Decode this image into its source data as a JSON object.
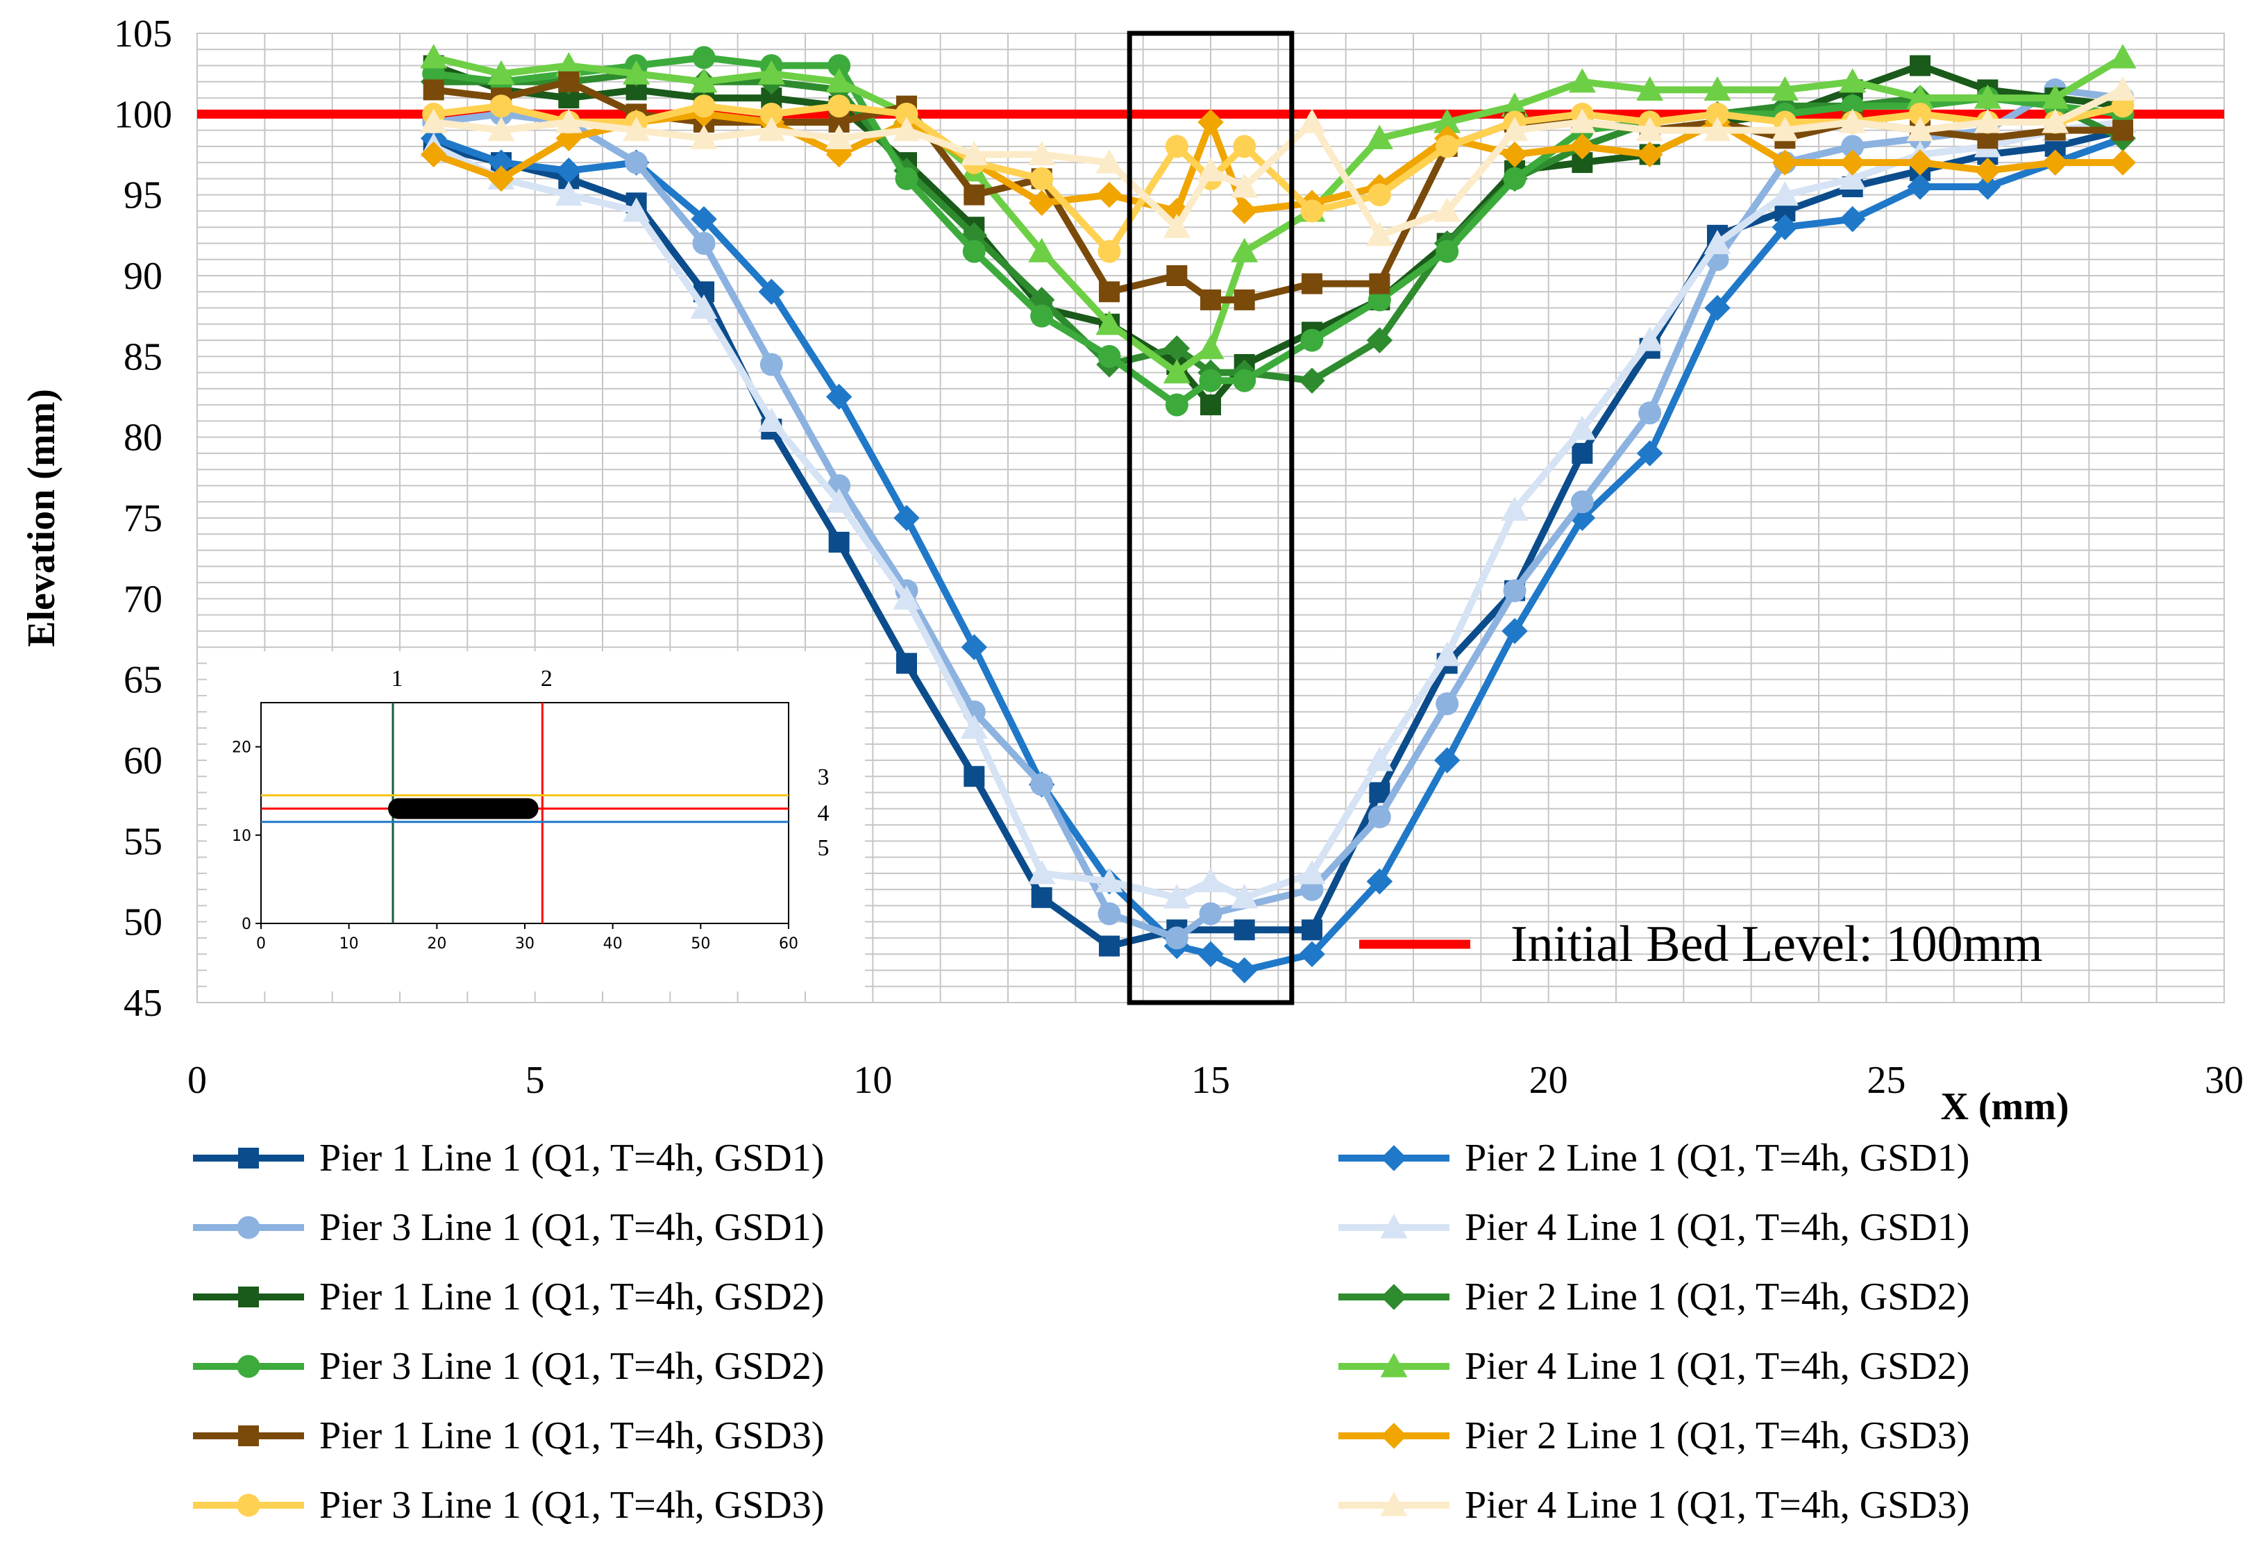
{
  "chart_data": {
    "type": "line",
    "title": "",
    "xlabel": "X (mm)",
    "ylabel": "Elevation (mm)",
    "xlim": [
      0,
      30
    ],
    "ylim": [
      45,
      105
    ],
    "xticks": [
      0,
      5,
      10,
      15,
      20,
      25,
      30
    ],
    "yticks": [
      45,
      50,
      55,
      60,
      65,
      70,
      75,
      80,
      85,
      90,
      95,
      100,
      105
    ],
    "grid": true,
    "legend_position": "bottom",
    "reference_line": {
      "label": "Initial Bed Level: 100mm",
      "y": 100,
      "color": "#ff0000"
    },
    "highlight_box": {
      "x": [
        13.8,
        16.2
      ],
      "y": [
        45,
        105
      ],
      "color": "#000000"
    },
    "series": [
      {
        "name": "Pier 1  Line 1 (Q1, T=4h, GSD1)",
        "color": "#0b4c8c",
        "marker": "square",
        "x": [
          3.5,
          4.5,
          5.5,
          6.5,
          7.5,
          8.5,
          9.5,
          10.5,
          11.5,
          12.5,
          13.5,
          14.5,
          15.5,
          16.5,
          17.5,
          18.5,
          19.5,
          20.5,
          21.5,
          22.5,
          23.5,
          24.5,
          25.5,
          26.5,
          27.5,
          28.5
        ],
        "y": [
          98,
          97,
          96,
          94.5,
          89,
          80.5,
          73.5,
          66,
          59,
          51.5,
          48.5,
          49.5,
          49.5,
          49.5,
          58,
          66,
          70.5,
          79,
          85.5,
          92.5,
          94,
          95.5,
          96.5,
          97.5,
          98,
          99
        ]
      },
      {
        "name": "Pier 2  Line 1 (Q1, T=4h, GSD1)",
        "color": "#1f78c8",
        "marker": "diamond",
        "x": [
          3.5,
          4.5,
          5.5,
          6.5,
          7.5,
          8.5,
          9.5,
          10.5,
          11.5,
          12.5,
          13.5,
          14.5,
          15,
          15.5,
          16.5,
          17.5,
          18.5,
          19.5,
          20.5,
          21.5,
          22.5,
          23.5,
          24.5,
          25.5,
          26.5,
          27.5,
          28.5
        ],
        "y": [
          98.5,
          97,
          96.5,
          97,
          93.5,
          89,
          82.5,
          75,
          67,
          58.5,
          52.5,
          48.5,
          48,
          47,
          48,
          52.5,
          60,
          68,
          75,
          79,
          88,
          93,
          93.5,
          95.5,
          95.5,
          97,
          98.5
        ]
      },
      {
        "name": "Pier 3  Line 1 (Q1, T=4h, GSD1)",
        "color": "#8cb2e0",
        "marker": "circle",
        "x": [
          3.5,
          4.5,
          5.5,
          6.5,
          7.5,
          8.5,
          9.5,
          10.5,
          11.5,
          12.5,
          13.5,
          14.5,
          15,
          16.5,
          17.5,
          18.5,
          19.5,
          20.5,
          21.5,
          22.5,
          23.5,
          24.5,
          25.5,
          26.5,
          27.5,
          28.5
        ],
        "y": [
          99.5,
          100,
          99.5,
          97,
          92,
          84.5,
          77,
          70.5,
          63,
          58.5,
          50.5,
          49,
          50.5,
          52,
          56.5,
          63.5,
          70.5,
          76,
          81.5,
          91,
          97,
          98,
          98.5,
          99,
          101.5,
          101
        ]
      },
      {
        "name": "Pier 4  Line 1 (Q1, T=4h, GSD1)",
        "color": "#d5e3f4",
        "marker": "triangle",
        "x": [
          3.5,
          4.5,
          5.5,
          6.5,
          7.5,
          8.5,
          9.5,
          10.5,
          11.5,
          12.5,
          13.5,
          14.5,
          15,
          15.5,
          16.5,
          17.5,
          18.5,
          19.5,
          20.5,
          21.5,
          22.5,
          23.5,
          24.5,
          25.5,
          26.5,
          27.5,
          28.5
        ],
        "y": [
          98,
          96,
          95,
          94,
          88,
          81,
          76,
          70,
          62,
          53,
          52.5,
          51.5,
          52.5,
          51.5,
          53,
          60,
          66.5,
          75.5,
          80.5,
          86,
          92,
          95,
          96,
          97.5,
          98,
          99,
          99.5
        ]
      },
      {
        "name": "Pier 1  Line 1 (Q1, T=4h, GSD2)",
        "color": "#1a5a1a",
        "marker": "square",
        "x": [
          3.5,
          4.5,
          5.5,
          6.5,
          7.5,
          8.5,
          9.5,
          10.5,
          11.5,
          12.5,
          13.5,
          14.5,
          15,
          15.5,
          16.5,
          17.5,
          18.5,
          19.5,
          20.5,
          21.5,
          22.5,
          23.5,
          24.5,
          25.5,
          26.5,
          27.5,
          28.5
        ],
        "y": [
          103,
          101.5,
          101,
          101.5,
          101,
          101,
          100.5,
          97,
          93,
          88,
          87,
          84.5,
          82,
          84.5,
          86.5,
          88.5,
          92,
          96.5,
          97,
          97.5,
          99.5,
          100,
          101.5,
          103,
          101.5,
          101,
          100.5
        ]
      },
      {
        "name": "Pier 2  Line 1 (Q1, T=4h, GSD2)",
        "color": "#2e8b2e",
        "marker": "diamond",
        "x": [
          3.5,
          4.5,
          5.5,
          6.5,
          7.5,
          8.5,
          9.5,
          10.5,
          11.5,
          12.5,
          13.5,
          14.5,
          15,
          15.5,
          16.5,
          17.5,
          18.5,
          19.5,
          20.5,
          21.5,
          22.5,
          23.5,
          24.5,
          25.5,
          26.5,
          27.5,
          28.5
        ],
        "y": [
          102,
          102,
          102,
          102.5,
          102,
          102,
          101.5,
          96.5,
          92.5,
          88.5,
          84.5,
          85.5,
          84,
          84,
          83.5,
          86,
          92,
          96,
          98,
          99.5,
          100,
          100.5,
          100.5,
          101,
          101,
          100.5,
          98.5
        ]
      },
      {
        "name": "Pier 3  Line 1 (Q1, T=4h, GSD2)",
        "color": "#3cab3c",
        "marker": "circle",
        "x": [
          3.5,
          4.5,
          5.5,
          6.5,
          7.5,
          8.5,
          9.5,
          10.5,
          11.5,
          12.5,
          13.5,
          14.5,
          15,
          15.5,
          16.5,
          17.5,
          18.5,
          19.5,
          20.5,
          21.5,
          22.5,
          23.5,
          24.5,
          25.5,
          26.5,
          27.5,
          28.5
        ],
        "y": [
          102.5,
          102,
          102.5,
          103,
          103.5,
          103,
          103,
          96,
          91.5,
          87.5,
          85,
          82,
          83.5,
          83.5,
          86,
          88.5,
          91.5,
          96,
          99,
          99.5,
          100,
          100,
          100.5,
          100.5,
          101,
          100.5,
          100
        ]
      },
      {
        "name": "Pier 4  Line 1 (Q1, T=4h, GSD2)",
        "color": "#6dcf45",
        "marker": "triangle",
        "x": [
          3.5,
          4.5,
          5.5,
          6.5,
          7.5,
          8.5,
          9.5,
          10.5,
          11.5,
          12.5,
          13.5,
          14.5,
          15,
          15.5,
          16.5,
          17.5,
          18.5,
          19.5,
          20.5,
          21.5,
          22.5,
          23.5,
          24.5,
          25.5,
          26.5,
          27.5,
          28.5
        ],
        "y": [
          103.5,
          102.5,
          103,
          102.5,
          102,
          102.5,
          102,
          100,
          96.5,
          91.5,
          87,
          84,
          85.5,
          91.5,
          94,
          98.5,
          99.5,
          100.5,
          102,
          101.5,
          101.5,
          101.5,
          102,
          101,
          101,
          101,
          103.5
        ]
      },
      {
        "name": "Pier 1  Line 1 (Q1, T=4h, GSD3)",
        "color": "#7a4a0a",
        "marker": "square",
        "x": [
          3.5,
          4.5,
          5.5,
          6.5,
          7.5,
          8.5,
          9.5,
          10.5,
          11.5,
          12.5,
          13.5,
          14.5,
          15,
          15.5,
          16.5,
          17.5,
          18.5,
          19.5,
          20.5,
          21.5,
          22.5,
          23.5,
          24.5,
          25.5,
          26.5,
          27.5,
          28.5
        ],
        "y": [
          101.5,
          101,
          102,
          100,
          99.5,
          99.5,
          99.5,
          100.5,
          95,
          96,
          89,
          90,
          88.5,
          88.5,
          89.5,
          89.5,
          98,
          99.5,
          99.5,
          99,
          99.5,
          98.5,
          99.5,
          99,
          98.5,
          99,
          99
        ]
      },
      {
        "name": "Pier 2  Line 1 (Q1, T=4h, GSD3)",
        "color": "#f0a500",
        "marker": "diamond",
        "x": [
          3.5,
          4.5,
          5.5,
          6.5,
          7.5,
          8.5,
          9.5,
          10.5,
          11.5,
          12.5,
          13.5,
          14.5,
          15,
          15.5,
          16.5,
          17.5,
          18.5,
          19.5,
          20.5,
          21.5,
          22.5,
          23.5,
          24.5,
          25.5,
          26.5,
          27.5,
          28.5
        ],
        "y": [
          97.5,
          96,
          98.5,
          99.5,
          100,
          99.5,
          97.5,
          99.5,
          97,
          94.5,
          95,
          94,
          99.5,
          94,
          94.5,
          95.5,
          98.5,
          97.5,
          98,
          97.5,
          99.5,
          97,
          97,
          97,
          96.5,
          97,
          97
        ]
      },
      {
        "name": "Pier 3  Line 1 (Q1, T=4h, GSD3)",
        "color": "#ffd152",
        "marker": "circle",
        "x": [
          3.5,
          4.5,
          5.5,
          6.5,
          7.5,
          8.5,
          9.5,
          10.5,
          11.5,
          12.5,
          13.5,
          14.5,
          15,
          15.5,
          16.5,
          17.5,
          18.5,
          19.5,
          20.5,
          21.5,
          22.5,
          23.5,
          24.5,
          25.5,
          26.5,
          27.5,
          28.5
        ],
        "y": [
          100,
          100.5,
          99.5,
          99.5,
          100.5,
          100,
          100.5,
          100,
          97,
          96,
          91.5,
          98,
          96,
          98,
          94,
          95,
          98,
          99.5,
          100,
          99.5,
          100,
          99.5,
          99.5,
          100,
          99.5,
          99.5,
          100.5
        ]
      },
      {
        "name": "Pier 4  Line 1 (Q1, T=4h, GSD3)",
        "color": "#fcebc8",
        "marker": "triangle",
        "x": [
          3.5,
          4.5,
          5.5,
          6.5,
          7.5,
          8.5,
          9.5,
          10.5,
          11.5,
          12.5,
          13.5,
          14.5,
          15,
          15.5,
          16.5,
          17.5,
          18.5,
          19.5,
          20.5,
          21.5,
          22.5,
          23.5,
          24.5,
          25.5,
          26.5,
          27.5,
          28.5
        ],
        "y": [
          99.5,
          99,
          99.5,
          99,
          98.5,
          99,
          98.5,
          99,
          97.5,
          97.5,
          97,
          93,
          96.5,
          95.5,
          99.5,
          92.5,
          94,
          99,
          99.5,
          99,
          99,
          99,
          99.5,
          99,
          99.5,
          99.5,
          101.5
        ]
      }
    ],
    "inset": {
      "xlim": [
        0,
        60
      ],
      "ylim": [
        0,
        25
      ],
      "xticks": [
        0,
        10,
        20,
        30,
        40,
        50,
        60
      ],
      "yticks": [
        0,
        10,
        20
      ],
      "pier": {
        "x": [
          15,
          31
        ],
        "y": 13,
        "color": "#000000"
      },
      "lines": [
        {
          "label": "1",
          "orientation": "vertical",
          "value": 15,
          "color": "#1a5a3a"
        },
        {
          "label": "2",
          "orientation": "vertical",
          "value": 32,
          "color": "#ff0000"
        },
        {
          "label": "3",
          "orientation": "horizontal",
          "value": 14.5,
          "color": "#f5c518"
        },
        {
          "label": "4",
          "orientation": "horizontal",
          "value": 13,
          "color": "#ff0000"
        },
        {
          "label": "5",
          "orientation": "horizontal",
          "value": 11.5,
          "color": "#1f78c8"
        }
      ]
    }
  }
}
